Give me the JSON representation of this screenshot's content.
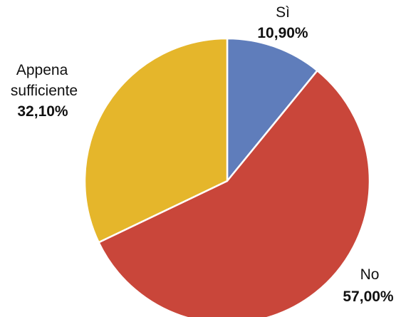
{
  "chart_data": {
    "type": "pie",
    "slices": [
      {
        "label_lines": [
          "Sì"
        ],
        "value": 10.9,
        "value_label": "10,90%",
        "color": "#5f7dbb"
      },
      {
        "label_lines": [
          "No"
        ],
        "value": 57.0,
        "value_label": "57,00%",
        "color": "#c9463a"
      },
      {
        "label_lines": [
          "Appena",
          "sufficiente"
        ],
        "value": 32.1,
        "value_label": "32,10%",
        "color": "#e5b62b"
      }
    ],
    "start": "top",
    "direction": "clockwise",
    "legend": "none"
  }
}
